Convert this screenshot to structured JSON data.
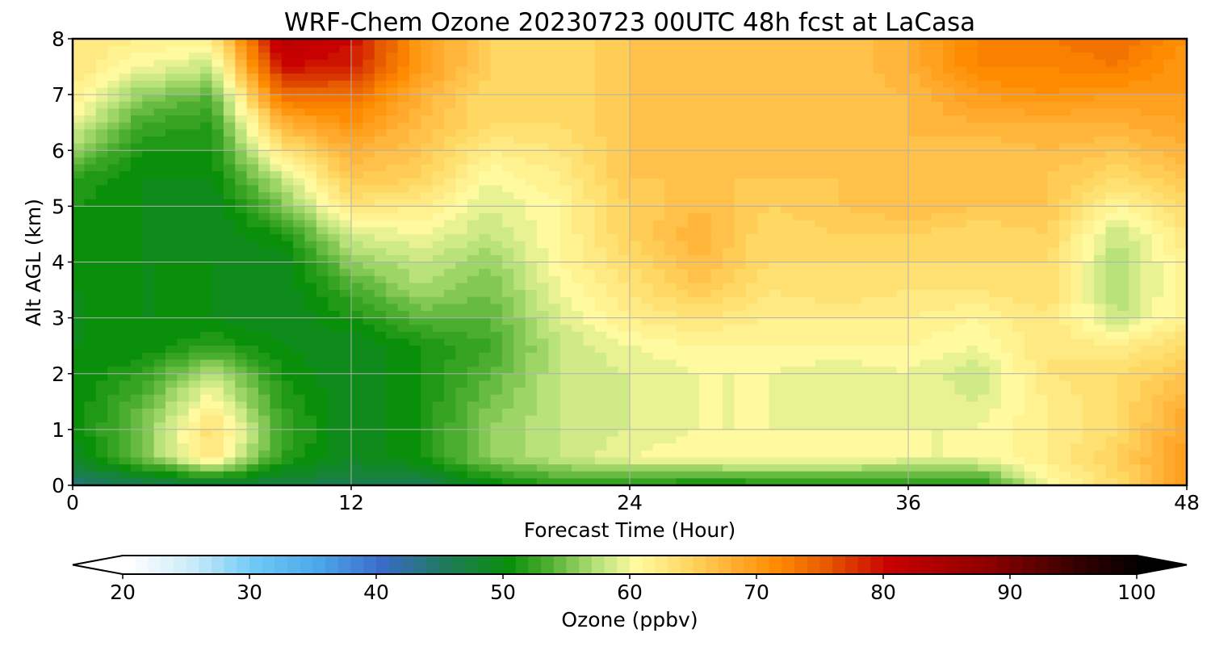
{
  "chart_data": {
    "type": "heatmap",
    "title": "WRF-Chem Ozone  20230723 00UTC 48h fcst at LaCasa",
    "xlabel": "Forecast Time (Hour)",
    "ylabel": "Alt AGL (km)",
    "xlim": [
      0,
      48
    ],
    "ylim": [
      0,
      8
    ],
    "x_ticks": [
      0,
      12,
      24,
      36,
      48
    ],
    "y_ticks": [
      0,
      1,
      2,
      3,
      4,
      5,
      6,
      7,
      8
    ],
    "grid": true,
    "x": [
      0,
      3,
      6,
      9,
      12,
      15,
      18,
      21,
      24,
      27,
      30,
      33,
      36,
      39,
      42,
      45,
      48
    ],
    "y": [
      0.0,
      0.5,
      1.0,
      1.5,
      2.0,
      2.5,
      3.0,
      3.5,
      4.0,
      4.5,
      5.0,
      5.5,
      6.0,
      6.5,
      7.0,
      7.5,
      8.0
    ],
    "values": [
      [
        44,
        46,
        47,
        47,
        46,
        46,
        50,
        52,
        52,
        50,
        51,
        51,
        51,
        51,
        60,
        64,
        70
      ],
      [
        49,
        55,
        63,
        52,
        49,
        51,
        56,
        58,
        60,
        61,
        61,
        61,
        60,
        60,
        62,
        65,
        70
      ],
      [
        50,
        55,
        64,
        53,
        49,
        51,
        56,
        58,
        59,
        60,
        60,
        60,
        60,
        60,
        62,
        64,
        69
      ],
      [
        50,
        54,
        61,
        52,
        49,
        51,
        55,
        58,
        59,
        60,
        60,
        59,
        60,
        59,
        62,
        64,
        68
      ],
      [
        50,
        52,
        58,
        51,
        49,
        51,
        54,
        58,
        59,
        60,
        60,
        59,
        60,
        58,
        63,
        64,
        66
      ],
      [
        50,
        50,
        52,
        50,
        49,
        51,
        53,
        58,
        60,
        61,
        61,
        61,
        61,
        60,
        63,
        62,
        64
      ],
      [
        50,
        50,
        50,
        49,
        51,
        54,
        54,
        59,
        62,
        63,
        62,
        62,
        62,
        61,
        63,
        58,
        62
      ],
      [
        50,
        50,
        50,
        49,
        53,
        57,
        55,
        60,
        63,
        66,
        63,
        64,
        63,
        63,
        64,
        57,
        62
      ],
      [
        51,
        50,
        50,
        49,
        56,
        58,
        56,
        61,
        64,
        67,
        64,
        64,
        64,
        64,
        64,
        57,
        62
      ],
      [
        51,
        50,
        49,
        51,
        59,
        60,
        58,
        61,
        65,
        68,
        64,
        65,
        65,
        64,
        65,
        58,
        63
      ],
      [
        51,
        50,
        49,
        55,
        63,
        62,
        59,
        61,
        65,
        67,
        65,
        66,
        67,
        66,
        66,
        61,
        64
      ],
      [
        52,
        50,
        50,
        58,
        66,
        65,
        60,
        62,
        66,
        66,
        66,
        66,
        67,
        66,
        66,
        64,
        66
      ],
      [
        56,
        51,
        51,
        63,
        68,
        66,
        62,
        63,
        66,
        66,
        66,
        66,
        67,
        66,
        67,
        66,
        68
      ],
      [
        60,
        53,
        52,
        68,
        71,
        67,
        64,
        64,
        66,
        66,
        66,
        66,
        67,
        68,
        68,
        68,
        69
      ],
      [
        62,
        56,
        54,
        74,
        74,
        68,
        64,
        64,
        66,
        67,
        66,
        66,
        67,
        70,
        71,
        70,
        70
      ],
      [
        63,
        60,
        58,
        80,
        79,
        70,
        65,
        64,
        66,
        67,
        66,
        66,
        68,
        72,
        72,
        73,
        70
      ],
      [
        63,
        62,
        62,
        83,
        80,
        70,
        65,
        64,
        66,
        67,
        66,
        66,
        68,
        72,
        73,
        74,
        71
      ]
    ],
    "colorbar": {
      "label": "Ozone  (ppbv)",
      "min": 20,
      "max": 100,
      "step": 1,
      "ticks": [
        20,
        30,
        40,
        50,
        60,
        70,
        80,
        90,
        100
      ],
      "extend": "both",
      "stops": [
        {
          "v": 20,
          "c": "#ffffff"
        },
        {
          "v": 25,
          "c": "#c9ebf9"
        },
        {
          "v": 30,
          "c": "#6ec8f5"
        },
        {
          "v": 35,
          "c": "#4ba6ea"
        },
        {
          "v": 40,
          "c": "#3a6bc8"
        },
        {
          "v": 45,
          "c": "#1e7a5a"
        },
        {
          "v": 50,
          "c": "#0a8f0a"
        },
        {
          "v": 53,
          "c": "#4cae2e"
        },
        {
          "v": 57,
          "c": "#b9e27a"
        },
        {
          "v": 60,
          "c": "#fffaa0"
        },
        {
          "v": 64,
          "c": "#ffd864"
        },
        {
          "v": 68,
          "c": "#ffaa2d"
        },
        {
          "v": 71,
          "c": "#ff8c00"
        },
        {
          "v": 75,
          "c": "#e65a00"
        },
        {
          "v": 80,
          "c": "#c80000"
        },
        {
          "v": 88,
          "c": "#8c0000"
        },
        {
          "v": 95,
          "c": "#320000"
        },
        {
          "v": 100,
          "c": "#000000"
        }
      ]
    }
  }
}
